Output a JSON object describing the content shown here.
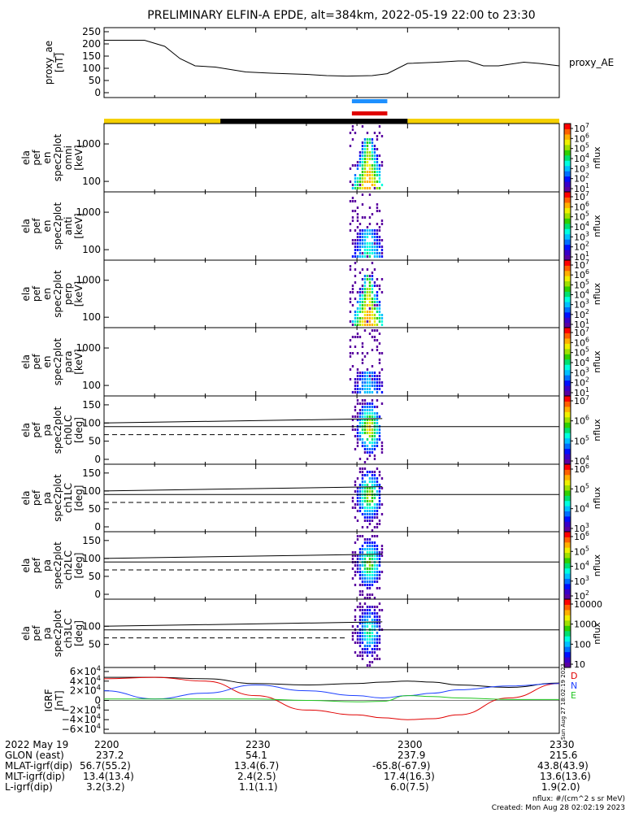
{
  "title": "PRELIMINARY ELFIN-A EPDE, alt=384km, 2022-05-19 22:00 to 23:30",
  "colors": {
    "line": "#000000",
    "sciZone": "#f5d000",
    "ephem": "#000000",
    "marker1": "#1e90ff",
    "marker2": "#e00000",
    "grfD": "#e00000",
    "grfN": "#1e40ff",
    "grfE": "#22c622"
  },
  "panels": [
    {
      "ylabel": [
        "proxy_ae",
        "[nT]"
      ],
      "right_label": "proxy_AE",
      "ticks": [
        "250",
        "200",
        "150",
        "100",
        "50",
        "0"
      ]
    },
    {
      "ylabel": [
        "ela",
        "pef",
        "en",
        "spec2plot",
        "omni",
        "[keV]"
      ],
      "ticks": [
        "1000",
        "100"
      ],
      "cb_label": "nflux",
      "cb_ticks": [
        "10^7",
        "10^6",
        "10^5",
        "10^4",
        "10^3",
        "10^2",
        "10^1"
      ]
    },
    {
      "ylabel": [
        "ela",
        "pef",
        "en",
        "spec2plot",
        "anti",
        "[keV]"
      ],
      "ticks": [
        "1000",
        "100"
      ],
      "cb_label": "nflux",
      "cb_ticks": [
        "10^7",
        "10^6",
        "10^5",
        "10^4",
        "10^3",
        "10^2",
        "10^1"
      ]
    },
    {
      "ylabel": [
        "ela",
        "pef",
        "en",
        "spec2plot",
        "perp",
        "[keV]"
      ],
      "ticks": [
        "1000",
        "100"
      ],
      "cb_label": "nflux",
      "cb_ticks": [
        "10^7",
        "10^6",
        "10^5",
        "10^4",
        "10^3",
        "10^2",
        "10^1"
      ]
    },
    {
      "ylabel": [
        "ela",
        "pef",
        "en",
        "spec2plot",
        "para",
        "[keV]"
      ],
      "ticks": [
        "1000",
        "100"
      ],
      "cb_label": "nflux",
      "cb_ticks": [
        "10^7",
        "10^6",
        "10^5",
        "10^4",
        "10^3",
        "10^2",
        "10^1"
      ]
    },
    {
      "ylabel": [
        "ela",
        "pef",
        "pa",
        "spec2plot",
        "ch0LC",
        "[deg]"
      ],
      "ticks": [
        "150",
        "100",
        "50",
        "0"
      ],
      "cb_label": "nflux",
      "cb_ticks": [
        "10^7",
        "10^6",
        "10^5",
        "10^4"
      ]
    },
    {
      "ylabel": [
        "ela",
        "pef",
        "pa",
        "spec2plot",
        "ch1LC",
        "[deg]"
      ],
      "ticks": [
        "150",
        "100",
        "50",
        "0"
      ],
      "cb_label": "nflux",
      "cb_ticks": [
        "10^6",
        "10^5",
        "10^4",
        "10^3"
      ]
    },
    {
      "ylabel": [
        "ela",
        "pef",
        "pa",
        "spec2plot",
        "ch2LC",
        "[deg]"
      ],
      "ticks": [
        "150",
        "100",
        "50",
        "0"
      ],
      "cb_label": "nflux",
      "cb_ticks": [
        "10^6",
        "10^5",
        "10^4",
        "10^3",
        "10^2"
      ]
    },
    {
      "ylabel": [
        "ela",
        "pef",
        "pa",
        "spec2plot",
        "ch3LC",
        "[deg]"
      ],
      "ticks": [
        "100",
        "50"
      ],
      "cb_label": "nflux",
      "cb_ticks": [
        "10000",
        "1000",
        "100",
        "10"
      ]
    },
    {
      "ylabel": [
        "IGRF",
        "[nT]"
      ],
      "ticks": [
        "6×10^4",
        "4×10^4",
        "2×10^4",
        "0",
        "−2×10^4",
        "−4×10^4",
        "−6×10^4"
      ],
      "legend": [
        "D",
        "N",
        "E"
      ]
    }
  ],
  "side_stamp": "Sun Aug 27 18:02:19 2023",
  "footer": {
    "rows": [
      [
        "2022 May 19",
        "2200",
        "2230",
        "2300",
        "2330"
      ],
      [
        "GLON (east)",
        "237.2",
        "54.1",
        "237.9",
        "215.6"
      ],
      [
        "MLAT-igrf(dip)",
        "56.7(55.2)",
        "13.4(6.7)",
        "-65.8(-67.9)",
        "43.8(43.9)"
      ],
      [
        "MLT-igrf(dip)",
        "13.4(13.4)",
        "2.4(2.5)",
        "17.4(16.3)",
        "13.6(13.6)"
      ],
      [
        "L-igrf(dip)",
        "3.2(3.2)",
        "1.1(1.1)",
        "6.0(7.5)",
        "1.9(2.0)"
      ]
    ],
    "note_units": "nflux: #/(cm^2 s sr MeV)",
    "note_created": "Created: Mon Aug 28 02:02:19 2023"
  },
  "chart_data": {
    "type": "line",
    "x_range_minutes": [
      0,
      90
    ],
    "x_tick_labels": [
      "2200",
      "2230",
      "2300",
      "2330"
    ],
    "proxy_ae": {
      "ylim": [
        0,
        260
      ],
      "x": [
        0,
        8,
        12,
        15,
        18,
        22,
        28,
        33,
        40,
        44,
        48,
        53,
        56,
        60,
        66,
        70,
        72,
        75,
        78,
        83,
        86,
        90
      ],
      "y": [
        215,
        215,
        190,
        140,
        110,
        105,
        85,
        80,
        75,
        70,
        68,
        70,
        78,
        120,
        125,
        130,
        130,
        110,
        110,
        125,
        120,
        110
      ]
    },
    "science_zones": [
      [
        0,
        23
      ],
      [
        60,
        90
      ]
    ],
    "ephem_zone": [
      23,
      60
    ],
    "markers": [
      [
        49,
        56
      ]
    ],
    "burst_x_range": [
      48.5,
      55
    ],
    "igrf": {
      "ylim": [
        -65000,
        65000
      ],
      "series": [
        {
          "name": "D",
          "x": [
            0,
            10,
            20,
            30,
            40,
            50,
            55,
            60,
            65,
            70,
            80,
            90
          ],
          "y": [
            45000,
            48000,
            40000,
            10000,
            -20000,
            -30000,
            -36000,
            -40000,
            -38000,
            -30000,
            5000,
            35000
          ]
        },
        {
          "name": "N",
          "x": [
            0,
            10,
            20,
            30,
            40,
            50,
            55,
            60,
            65,
            70,
            80,
            90
          ],
          "y": [
            20000,
            3000,
            15000,
            32000,
            20000,
            10000,
            5000,
            10000,
            15000,
            22000,
            30000,
            35000
          ]
        },
        {
          "name": "E",
          "x": [
            0,
            10,
            20,
            30,
            40,
            50,
            55,
            60,
            65,
            70,
            80,
            90
          ],
          "y": [
            3000,
            3000,
            3000,
            3000,
            0,
            -3000,
            -2000,
            10000,
            8000,
            5000,
            2000,
            2000
          ]
        }
      ],
      "orbit_curve": {
        "x": [
          0,
          10,
          20,
          30,
          40,
          50,
          55,
          60,
          65,
          70,
          80,
          90
        ],
        "y": [
          48000,
          48000,
          45000,
          35000,
          32000,
          35000,
          38000,
          40000,
          38000,
          32000,
          27000,
          36000
        ]
      }
    }
  }
}
